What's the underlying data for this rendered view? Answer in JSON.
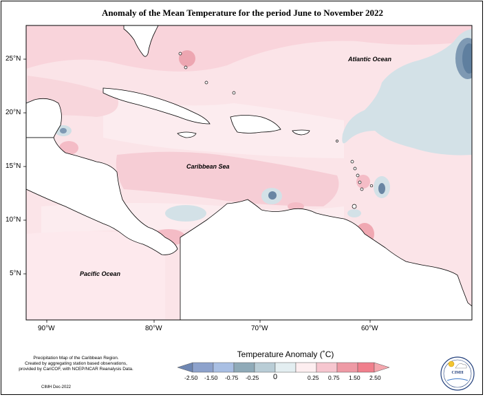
{
  "title": "Anomaly of the Mean Temperature for the period June to November 2022",
  "map": {
    "lon_ticks": [
      "90°W",
      "80°W",
      "70°W",
      "60°W"
    ],
    "lat_ticks": [
      "25°N",
      "20°N",
      "15°N",
      "10°N",
      "5°N"
    ],
    "labels": {
      "atlantic": "Atlantic Ocean",
      "caribbean": "Caribbean Sea",
      "pacific": "Pacific Ocean"
    }
  },
  "legend": {
    "title": "Temperature Anomaly (˚C)",
    "ticks": [
      "-2.50",
      "-1.50",
      "-0.75",
      "-0.25",
      "0",
      "0.25",
      "0.75",
      "1.50",
      "2.50"
    ],
    "colors": [
      "#6f87b3",
      "#8da2cc",
      "#a9bfe3",
      "#8faab8",
      "#cfe0e6",
      "#fdeef0",
      "#f6c6cf",
      "#ee9aa5",
      "#f07f8c",
      "#f4a7ae"
    ]
  },
  "colors": {
    "warm_light": "#fbe6ea",
    "warm_mid": "#f5c8d0",
    "warm_strong": "#e898a4",
    "cool_light": "#d2e1e7",
    "cool_mid": "#a9c2d0",
    "cool_strong": "#5f7f9f",
    "land": "#ffffff"
  },
  "credit": {
    "line1": "Precipitation Map of the Caribbean Region.",
    "line2": "Created by aggregating station based observations,",
    "line3": "provided by CariCOF, with NCEP/NCAR Reanalysis Data.",
    "date": "CIMH Dec-2022"
  },
  "logo": {
    "text": "CIMH"
  }
}
